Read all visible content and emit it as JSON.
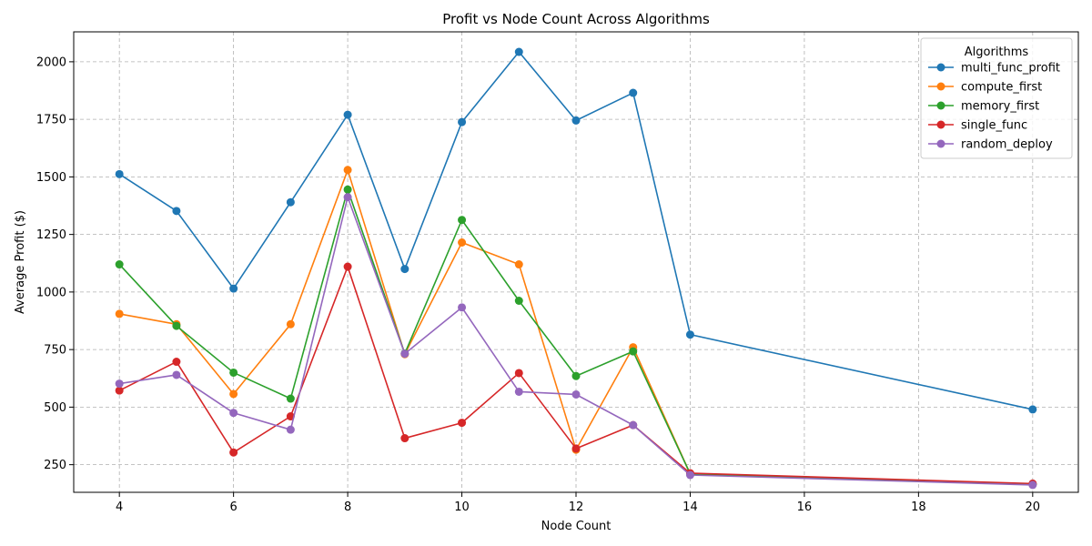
{
  "chart_data": {
    "type": "line",
    "title": "Profit vs Node Count Across Algorithms",
    "xlabel": "Node Count",
    "ylabel": "Average Profit ($)",
    "xlim": [
      3.2,
      20.8
    ],
    "ylim": [
      130,
      2130
    ],
    "xticks": [
      4,
      6,
      8,
      10,
      12,
      14,
      16,
      18,
      20
    ],
    "yticks": [
      250,
      500,
      750,
      1000,
      1250,
      1500,
      1750,
      2000
    ],
    "grid": true,
    "legend": {
      "title": "Algorithms",
      "placement": "top-right"
    },
    "x": [
      4,
      5,
      6,
      7,
      8,
      9,
      10,
      11,
      12,
      13,
      14,
      20
    ],
    "series": [
      {
        "name": "multi_func_profit",
        "color": "#1f77b4",
        "values": [
          1512,
          1352,
          1015,
          1390,
          1770,
          1100,
          1738,
          2043,
          1745,
          1865,
          815,
          490
        ]
      },
      {
        "name": "compute_first",
        "color": "#ff7f0e",
        "values": [
          905,
          860,
          557,
          860,
          1530,
          730,
          1215,
          1120,
          315,
          760,
          210,
          165
        ]
      },
      {
        "name": "memory_first",
        "color": "#2ca02c",
        "values": [
          1120,
          853,
          650,
          537,
          1445,
          733,
          1313,
          962,
          635,
          742,
          210,
          165
        ]
      },
      {
        "name": "single_func",
        "color": "#d62728",
        "values": [
          572,
          697,
          303,
          460,
          1110,
          365,
          432,
          648,
          320,
          422,
          213,
          168
        ]
      },
      {
        "name": "random_deploy",
        "color": "#9467bd",
        "values": [
          602,
          640,
          475,
          402,
          1412,
          732,
          933,
          567,
          555,
          422,
          205,
          162
        ]
      }
    ]
  }
}
